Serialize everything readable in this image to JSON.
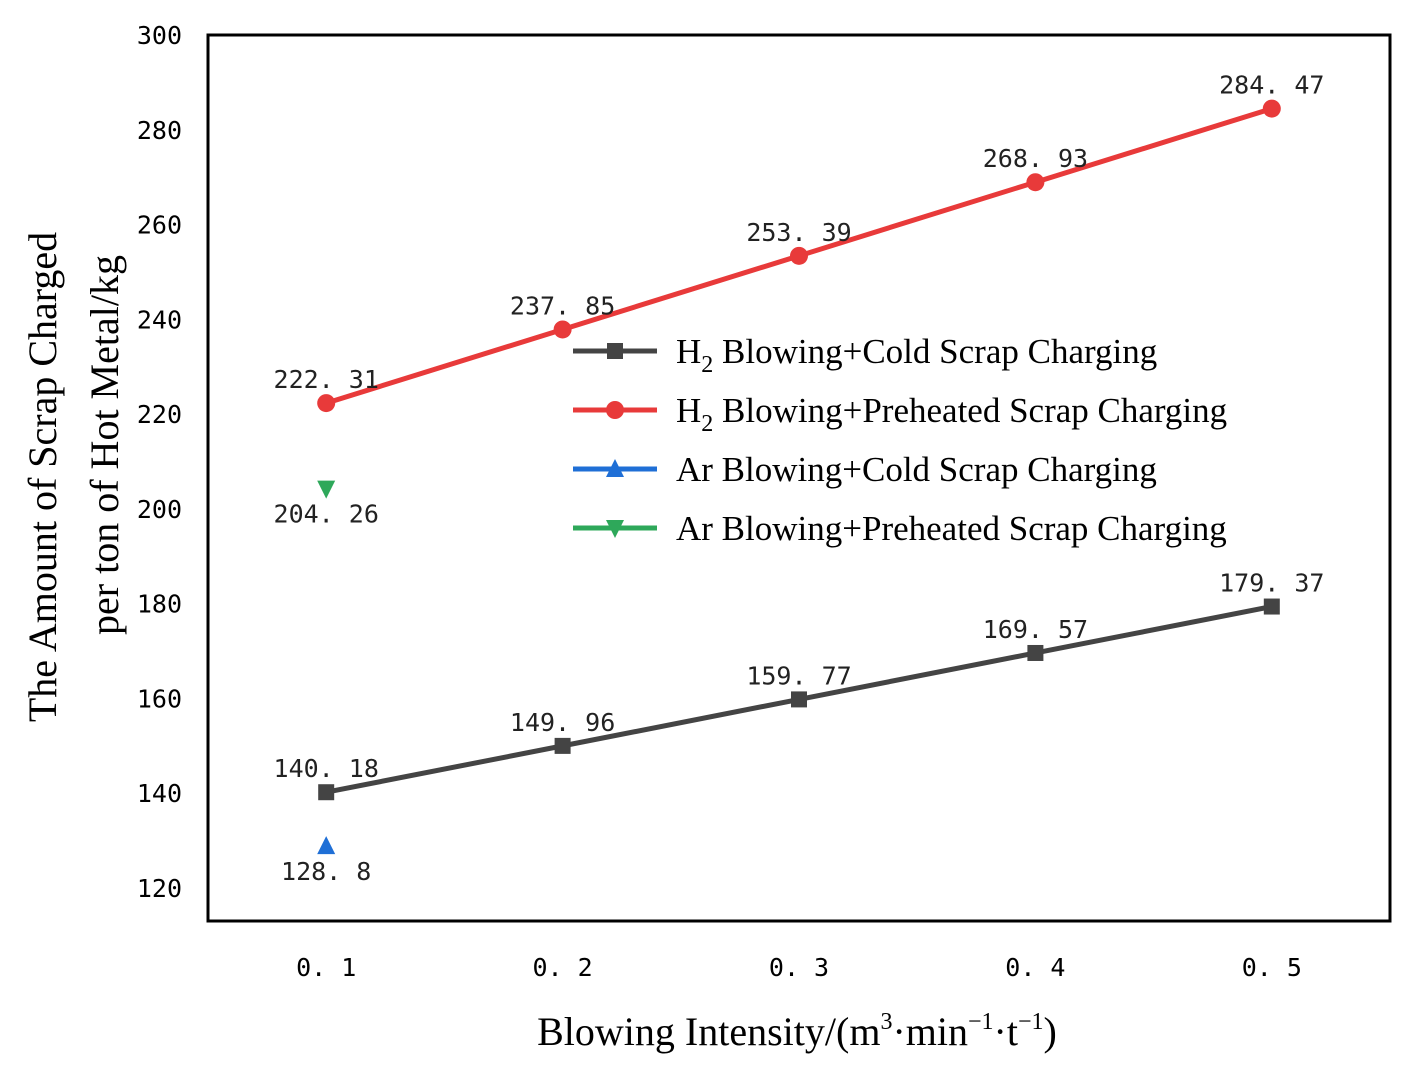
{
  "chart_data": {
    "type": "line",
    "title": "",
    "xlabel": {
      "prefix": "Blowing Intensity/(m",
      "sup1": "3",
      "mid1": "·min",
      "sup2": "−1",
      "mid2": "·t",
      "sup3": "−1",
      "suffix": ")"
    },
    "ylabel_line1": "The Amount of Scrap Charged",
    "ylabel_line2": "per ton of Hot Metal/kg",
    "x_ticks": [
      0.1,
      0.2,
      0.3,
      0.4,
      0.5
    ],
    "x_tick_labels": [
      "0. 1",
      "0. 2",
      "0. 3",
      "0. 4",
      "0. 5"
    ],
    "xlim": [
      0.05,
      0.55
    ],
    "ylim": [
      113,
      300
    ],
    "y_ticks": [
      120,
      140,
      160,
      180,
      200,
      220,
      240,
      260,
      280,
      300
    ],
    "y_tick_labels": [
      "120",
      "140",
      "160",
      "180",
      "200",
      "220",
      "240",
      "260",
      "280",
      "300"
    ],
    "legend_position": "center-right",
    "series": [
      {
        "name": "H2 Blowing+Cold Scrap Charging",
        "legend_main": "H",
        "legend_sub": "2",
        "legend_rest": " Blowing+Cold Scrap Charging",
        "color": "#444444",
        "marker": "square",
        "x": [
          0.1,
          0.2,
          0.3,
          0.4,
          0.5
        ],
        "values": [
          140.18,
          149.96,
          159.77,
          169.57,
          179.37
        ],
        "labels": [
          "140. 18",
          "149. 96",
          "159. 77",
          "169. 57",
          "179. 37"
        ],
        "label_pos": "above"
      },
      {
        "name": "H2 Blowing+Preheated Scrap Charging",
        "legend_main": "H",
        "legend_sub": "2",
        "legend_rest": " Blowing+Preheated Scrap Charging",
        "color": "#e83a3a",
        "marker": "circle",
        "x": [
          0.1,
          0.2,
          0.3,
          0.4,
          0.5
        ],
        "values": [
          222.31,
          237.85,
          253.39,
          268.93,
          284.47
        ],
        "labels": [
          "222. 31",
          "237. 85",
          "253. 39",
          "268. 93",
          "284. 47"
        ],
        "label_pos": "above"
      },
      {
        "name": "Ar Blowing+Cold Scrap Charging",
        "legend_main": "Ar Blowing+Cold Scrap Charging",
        "legend_sub": "",
        "legend_rest": "",
        "color": "#1f6fd6",
        "marker": "triangle-up",
        "x": [
          0.1
        ],
        "values": [
          128.8
        ],
        "labels": [
          "128. 8"
        ],
        "label_pos": "below"
      },
      {
        "name": "Ar Blowing+Preheated Scrap Charging",
        "legend_main": "Ar Blowing+Preheated Scrap Charging",
        "legend_sub": "",
        "legend_rest": "",
        "color": "#2ea85a",
        "marker": "triangle-down",
        "x": [
          0.1
        ],
        "values": [
          204.26
        ],
        "labels": [
          "204. 26"
        ],
        "label_pos": "below"
      }
    ]
  }
}
